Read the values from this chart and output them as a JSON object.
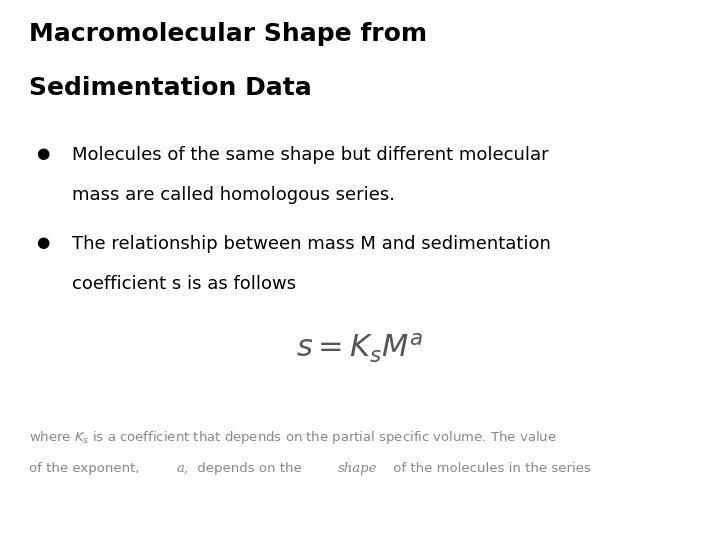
{
  "title_line1": "Macromolecular Shape from",
  "title_line2": "Sedimentation Data",
  "bullet1_line1": "Molecules of the same shape but different molecular",
  "bullet1_line2": "mass are called homologous series.",
  "bullet2_line1": "The relationship between mass M and sedimentation",
  "bullet2_line2": "coefficient s is as follows",
  "equation": "$s = K_s M^a$",
  "footnote_line1": "where $K_s$ is a coefficient that depends on the partial specific volume. The value",
  "footnote_line2a": "of the exponent, ",
  "footnote_line2b": "$a,$",
  "footnote_line2c": " depends on the ",
  "footnote_line2d": "shape",
  "footnote_line2e": " of the molecules in the series",
  "background_color": "#ffffff",
  "title_color": "#000000",
  "bullet_color": "#000000",
  "equation_color": "#555555",
  "footnote_color": "#888888",
  "title_fontsize": 18,
  "bullet_fontsize": 13,
  "equation_fontsize": 22,
  "footnote_fontsize": 9.5
}
